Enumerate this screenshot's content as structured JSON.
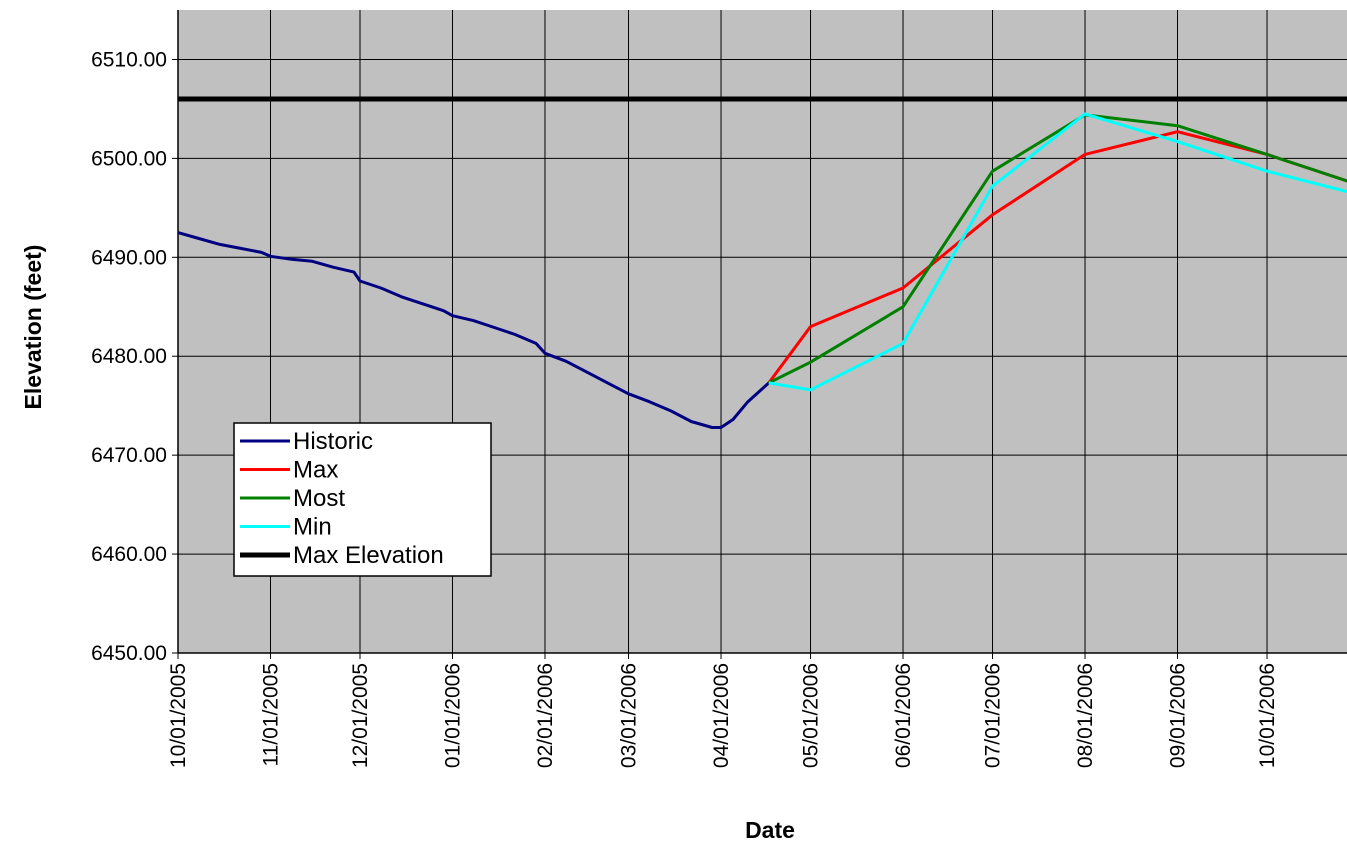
{
  "chart_data": {
    "type": "line",
    "title": "",
    "xlabel": "Date",
    "ylabel": "Elevation (feet)",
    "xlim": [
      "2005-10-01",
      "2006-10-31"
    ],
    "ylim": [
      6450,
      6515
    ],
    "y_ticks": [
      "6450.00",
      "6460.00",
      "6470.00",
      "6480.00",
      "6490.00",
      "6500.00",
      "6510.00"
    ],
    "x_ticks": [
      "10/01/2005",
      "11/01/2005",
      "12/01/2005",
      "01/01/2006",
      "02/01/2006",
      "03/01/2006",
      "04/01/2006",
      "05/01/2006",
      "06/01/2006",
      "07/01/2006",
      "08/01/2006",
      "09/01/2006",
      "10/01/2006"
    ],
    "grid": true,
    "plot_background": "#c0c0c0",
    "legend_position": "lower-left",
    "series": [
      {
        "name": "Historic",
        "color": "#000080",
        "points": [
          [
            "2005-10-01",
            6492.5
          ],
          [
            "2005-10-08",
            6491.9
          ],
          [
            "2005-10-15",
            6491.3
          ],
          [
            "2005-10-22",
            6490.9
          ],
          [
            "2005-10-29",
            6490.5
          ],
          [
            "2005-11-01",
            6490.1
          ],
          [
            "2005-11-08",
            6489.8
          ],
          [
            "2005-11-15",
            6489.6
          ],
          [
            "2005-11-22",
            6489.0
          ],
          [
            "2005-11-29",
            6488.5
          ],
          [
            "2005-12-01",
            6487.6
          ],
          [
            "2005-12-08",
            6486.9
          ],
          [
            "2005-12-15",
            6486.0
          ],
          [
            "2005-12-22",
            6485.3
          ],
          [
            "2005-12-29",
            6484.6
          ],
          [
            "2006-01-01",
            6484.1
          ],
          [
            "2006-01-08",
            6483.6
          ],
          [
            "2006-01-15",
            6482.9
          ],
          [
            "2006-01-22",
            6482.2
          ],
          [
            "2006-01-29",
            6481.3
          ],
          [
            "2006-02-01",
            6480.3
          ],
          [
            "2006-02-08",
            6479.5
          ],
          [
            "2006-02-15",
            6478.4
          ],
          [
            "2006-02-22",
            6477.3
          ],
          [
            "2006-03-01",
            6476.2
          ],
          [
            "2006-03-08",
            6475.4
          ],
          [
            "2006-03-15",
            6474.5
          ],
          [
            "2006-03-22",
            6473.4
          ],
          [
            "2006-03-29",
            6472.8
          ],
          [
            "2006-04-01",
            6472.8
          ],
          [
            "2006-04-05",
            6473.6
          ],
          [
            "2006-04-10",
            6475.4
          ],
          [
            "2006-04-17",
            6477.3
          ]
        ]
      },
      {
        "name": "Max",
        "color": "#ff0000",
        "points": [
          [
            "2006-04-17",
            6477.3
          ],
          [
            "2006-05-01",
            6483.0
          ],
          [
            "2006-06-01",
            6486.9
          ],
          [
            "2006-07-01",
            6494.3
          ],
          [
            "2006-08-01",
            6500.4
          ],
          [
            "2006-09-01",
            6502.7
          ],
          [
            "2006-10-01",
            6500.4
          ],
          [
            "2006-10-31",
            6497.4
          ]
        ]
      },
      {
        "name": "Most",
        "color": "#008000",
        "points": [
          [
            "2006-04-17",
            6477.3
          ],
          [
            "2006-05-01",
            6479.4
          ],
          [
            "2006-06-01",
            6485.0
          ],
          [
            "2006-07-01",
            6498.7
          ],
          [
            "2006-08-01",
            6504.4
          ],
          [
            "2006-09-01",
            6503.3
          ],
          [
            "2006-10-01",
            6500.4
          ],
          [
            "2006-10-31",
            6497.4
          ]
        ]
      },
      {
        "name": "Min",
        "color": "#00ffff",
        "points": [
          [
            "2006-04-17",
            6477.3
          ],
          [
            "2006-05-01",
            6476.6
          ],
          [
            "2006-06-01",
            6481.3
          ],
          [
            "2006-07-01",
            6497.2
          ],
          [
            "2006-08-01",
            6504.5
          ],
          [
            "2006-09-01",
            6501.7
          ],
          [
            "2006-10-01",
            6498.7
          ],
          [
            "2006-10-31",
            6496.4
          ]
        ]
      },
      {
        "name": "Max Elevation",
        "color": "#000000",
        "points": [
          [
            "2005-10-01",
            6506.0
          ],
          [
            "2006-10-31",
            6506.0
          ]
        ]
      }
    ]
  }
}
